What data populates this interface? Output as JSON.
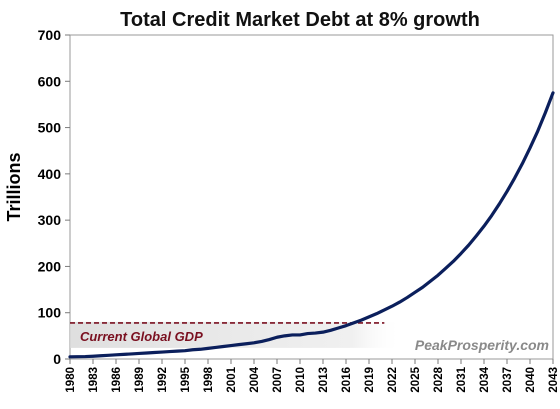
{
  "chart_data": {
    "type": "line",
    "title": "Total Credit Market Debt at 8% growth",
    "ylabel": "Trillions",
    "xlabel": "",
    "ylim": [
      0,
      700
    ],
    "yticks": [
      "0",
      "100",
      "200",
      "300",
      "400",
      "500",
      "600",
      "700"
    ],
    "xlim": [
      1980,
      2043
    ],
    "xticks": [
      "1980",
      "1983",
      "1986",
      "1989",
      "1992",
      "1995",
      "1998",
      "2001",
      "2004",
      "2007",
      "2010",
      "2013",
      "2016",
      "2019",
      "2022",
      "2025",
      "2028",
      "2031",
      "2034",
      "2037",
      "2040",
      "2043"
    ],
    "grid": false,
    "series": [
      {
        "color": "#0b1f5c",
        "x": [
          1980,
          1981,
          1982,
          1983,
          1984,
          1985,
          1986,
          1987,
          1988,
          1989,
          1990,
          1991,
          1992,
          1993,
          1994,
          1995,
          1996,
          1997,
          1998,
          1999,
          2000,
          2001,
          2002,
          2003,
          2004,
          2005,
          2006,
          2007,
          2008,
          2009,
          2010,
          2011,
          2012,
          2013,
          2014,
          2015,
          2016,
          2017,
          2018,
          2019,
          2020,
          2021,
          2022,
          2023,
          2024,
          2025,
          2026,
          2027,
          2028,
          2029,
          2030,
          2031,
          2032,
          2033,
          2034,
          2035,
          2036,
          2037,
          2038,
          2039,
          2040,
          2041,
          2042,
          2043
        ],
        "y": [
          4.7,
          5,
          5.3,
          6,
          7,
          8,
          9,
          10,
          11,
          12,
          13,
          14,
          15,
          16,
          17,
          18,
          20,
          21,
          23,
          25,
          27,
          29,
          31,
          33,
          35,
          38,
          42,
          47,
          50,
          52,
          52,
          55,
          56,
          58,
          62,
          67,
          72,
          78,
          84,
          91,
          98,
          106,
          114,
          123,
          133,
          144,
          155,
          168,
          181,
          196,
          211,
          228,
          246,
          266,
          287,
          310,
          335,
          362,
          391,
          422,
          456,
          492,
          532,
          575
        ]
      }
    ],
    "annotations": [
      {
        "type": "hline",
        "y": 78,
        "x_range": [
          1980,
          2021
        ],
        "color": "#7a1020",
        "style": "dashed"
      }
    ],
    "gdp_label": "Current Global GDP",
    "watermark": "PeakProsperity.com"
  }
}
